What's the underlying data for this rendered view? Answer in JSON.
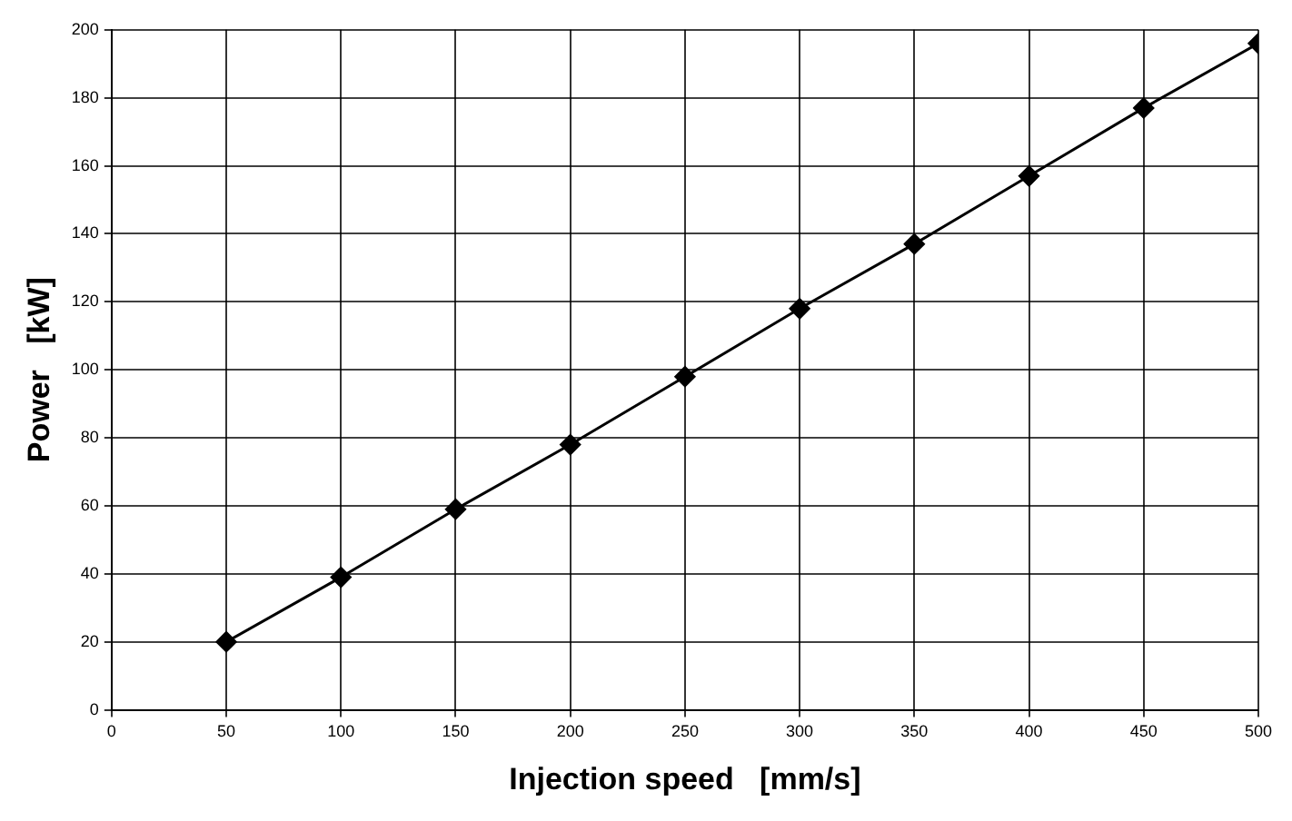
{
  "chart_data": {
    "type": "line",
    "xlabel": "Injection speed   [mm/s]",
    "ylabel": "Power   [kW]",
    "x": [
      50,
      100,
      150,
      200,
      250,
      300,
      350,
      400,
      450,
      500
    ],
    "series": [
      {
        "color": "#000000",
        "values": [
          20,
          39,
          59,
          78,
          98,
          118,
          137,
          157,
          177,
          196
        ]
      }
    ],
    "xlim": [
      0,
      500
    ],
    "xticks": [
      0,
      50,
      100,
      150,
      200,
      250,
      300,
      350,
      400,
      450,
      500
    ],
    "ylim": [
      0,
      200
    ],
    "yticks": [
      0,
      20,
      40,
      60,
      80,
      100,
      120,
      140,
      160,
      180,
      200
    ],
    "grid": true,
    "marker": "diamond",
    "line_style": "solid"
  }
}
